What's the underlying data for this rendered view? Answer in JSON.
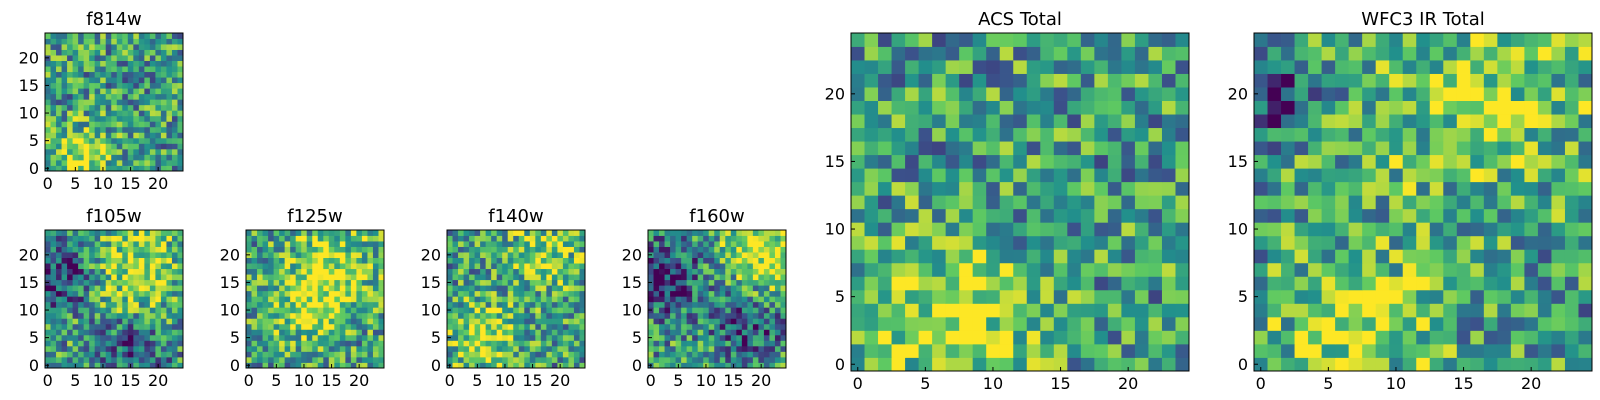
{
  "colormap": [
    "#440154",
    "#3b528b",
    "#21918c",
    "#5ec962",
    "#fde725"
  ],
  "chart_data": [
    {
      "type": "heatmap",
      "title": "f814w",
      "size": 25,
      "seed": 11,
      "blob": [
        [
          6,
          2,
          4,
          0.9
        ]
      ],
      "xticks": [
        0,
        5,
        10,
        15,
        20
      ],
      "yticks": [
        0,
        5,
        10,
        15,
        20
      ],
      "xlim": [
        0,
        25
      ],
      "ylim": [
        0,
        25
      ]
    },
    {
      "type": "heatmap",
      "title": "f105w",
      "size": 25,
      "seed": 21,
      "blob": [
        [
          16,
          17,
          6,
          0.8
        ],
        [
          3,
          16,
          4,
          -0.9
        ],
        [
          16,
          4,
          4,
          -0.7
        ]
      ],
      "xticks": [
        0,
        5,
        10,
        15,
        20
      ],
      "yticks": [
        0,
        5,
        10,
        15,
        20
      ],
      "xlim": [
        0,
        25
      ],
      "ylim": [
        0,
        25
      ]
    },
    {
      "type": "heatmap",
      "title": "f125w",
      "size": 25,
      "seed": 31,
      "blob": [
        [
          15,
          17,
          6,
          0.8
        ],
        [
          10,
          10,
          4,
          0.6
        ]
      ],
      "xticks": [
        0,
        5,
        10,
        15,
        20
      ],
      "yticks": [
        0,
        5,
        10,
        15,
        20
      ],
      "xlim": [
        0,
        25
      ],
      "ylim": [
        0,
        25
      ]
    },
    {
      "type": "heatmap",
      "title": "f140w",
      "size": 25,
      "seed": 41,
      "blob": [
        [
          6,
          5,
          4,
          0.9
        ],
        [
          17,
          20,
          5,
          0.6
        ]
      ],
      "xticks": [
        0,
        5,
        10,
        15,
        20
      ],
      "yticks": [
        0,
        5,
        10,
        15,
        20
      ],
      "xlim": [
        0,
        25
      ],
      "ylim": [
        0,
        25
      ]
    },
    {
      "type": "heatmap",
      "title": "f160w",
      "size": 25,
      "seed": 51,
      "blob": [
        [
          20,
          21,
          5,
          0.9
        ],
        [
          3,
          16,
          5,
          -0.8
        ],
        [
          18,
          7,
          4,
          -0.7
        ]
      ],
      "xticks": [
        0,
        5,
        10,
        15,
        20
      ],
      "yticks": [
        0,
        5,
        10,
        15,
        20
      ],
      "xlim": [
        0,
        25
      ],
      "ylim": [
        0,
        25
      ]
    },
    {
      "type": "heatmap",
      "title": "ACS Total",
      "size": 25,
      "seed": 61,
      "blob": [
        [
          7,
          3,
          4,
          0.9
        ]
      ],
      "xticks": [
        0,
        5,
        10,
        15,
        20
      ],
      "yticks": [
        0,
        5,
        10,
        15,
        20
      ],
      "xlim": [
        0,
        25
      ],
      "ylim": [
        0,
        25
      ]
    },
    {
      "type": "heatmap",
      "title": "WFC3 IR Total",
      "size": 25,
      "seed": 71,
      "blob": [
        [
          7,
          3,
          4,
          0.8
        ],
        [
          16,
          20,
          6,
          0.6
        ],
        [
          1,
          20,
          2,
          -1.0
        ]
      ],
      "xticks": [
        0,
        5,
        10,
        15,
        20
      ],
      "yticks": [
        0,
        5,
        10,
        15,
        20
      ],
      "xlim": [
        0,
        25
      ],
      "ylim": [
        0,
        25
      ]
    }
  ]
}
